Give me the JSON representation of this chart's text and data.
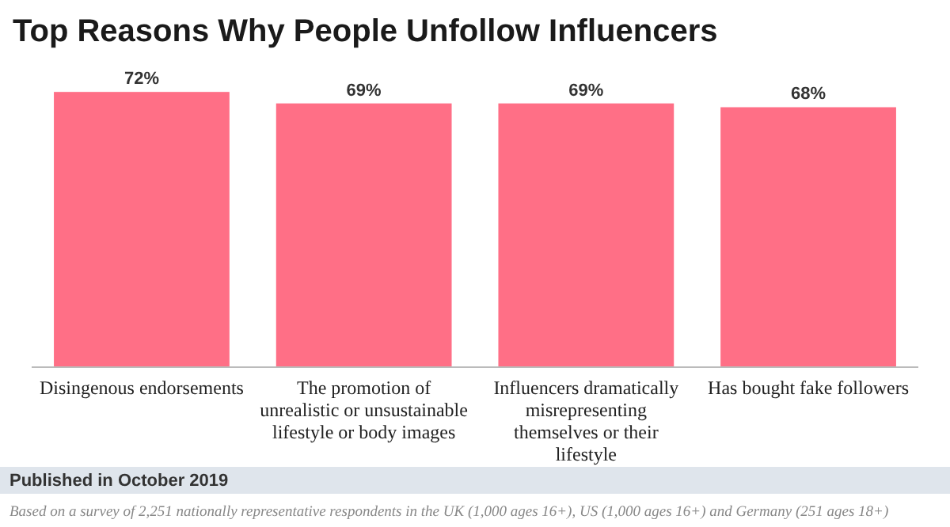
{
  "chart_data": {
    "type": "bar",
    "title": "Top Reasons Why People Unfollow Influencers",
    "categories": [
      "Disingenous endorsements",
      "The promotion of unrealistic or unsustainable lifestyle or body images",
      "Influencers dramatically misrepresenting themselves or their lifestyle",
      "Has bought fake followers"
    ],
    "values": [
      72,
      69,
      69,
      68
    ],
    "color": "#ff6f86",
    "data_labels": true,
    "value_labels": [
      "72%",
      "69%",
      "69%",
      "68%"
    ],
    "annotations": [
      "Published in October 2019",
      "Based on a survey of 2,251 nationally representative respondents in the UK (1,000 ages 16+), US (1,000 ages 16+) and Germany (251 ages 18+)"
    ]
  }
}
